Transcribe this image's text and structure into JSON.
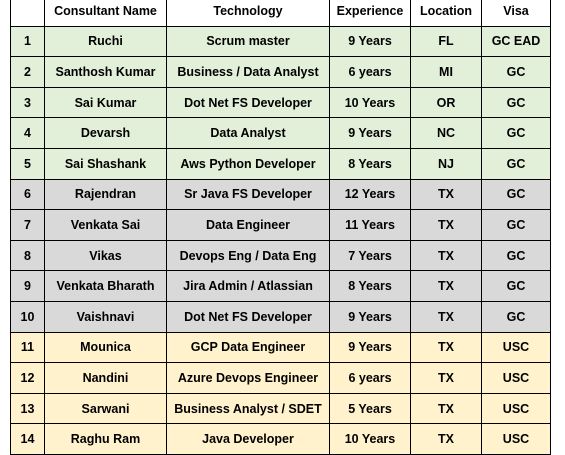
{
  "table": {
    "headers": [
      "",
      "Consultant Name",
      "Technology",
      "Experience",
      "Location",
      "Visa"
    ],
    "rows": [
      {
        "num": "1",
        "name": "Ruchi",
        "tech": "Scrum master",
        "exp": "9 Years",
        "loc": "FL",
        "visa": "GC EAD",
        "group": "green"
      },
      {
        "num": "2",
        "name": "Santhosh Kumar",
        "tech": "Business / Data Analyst",
        "exp": "6 years",
        "loc": "MI",
        "visa": "GC",
        "group": "green"
      },
      {
        "num": "3",
        "name": "Sai Kumar",
        "tech": "Dot Net FS Developer",
        "exp": "10 Years",
        "loc": "OR",
        "visa": "GC",
        "group": "green"
      },
      {
        "num": "4",
        "name": "Devarsh",
        "tech": "Data Analyst",
        "exp": "9 Years",
        "loc": "NC",
        "visa": "GC",
        "group": "green"
      },
      {
        "num": "5",
        "name": "Sai Shashank",
        "tech": "Aws Python Developer",
        "exp": "8 Years",
        "loc": "NJ",
        "visa": "GC",
        "group": "green"
      },
      {
        "num": "6",
        "name": "Rajendran",
        "tech": "Sr Java FS Developer",
        "exp": "12 Years",
        "loc": "TX",
        "visa": "GC",
        "group": "gray"
      },
      {
        "num": "7",
        "name": "Venkata Sai",
        "tech": "Data Engineer",
        "exp": "11 Years",
        "loc": "TX",
        "visa": "GC",
        "group": "gray"
      },
      {
        "num": "8",
        "name": "Vikas",
        "tech": "Devops Eng / Data Eng",
        "exp": "7 Years",
        "loc": "TX",
        "visa": "GC",
        "group": "gray"
      },
      {
        "num": "9",
        "name": "Venkata Bharath",
        "tech": "Jira Admin / Atlassian",
        "exp": "8 Years",
        "loc": "TX",
        "visa": "GC",
        "group": "gray"
      },
      {
        "num": "10",
        "name": "Vaishnavi",
        "tech": "Dot Net FS Developer",
        "exp": "9 Years",
        "loc": "TX",
        "visa": "GC",
        "group": "gray"
      },
      {
        "num": "11",
        "name": "Mounica",
        "tech": "GCP Data Engineer",
        "exp": "9 Years",
        "loc": "TX",
        "visa": "USC",
        "group": "yellow"
      },
      {
        "num": "12",
        "name": "Nandini",
        "tech": "Azure Devops Engineer",
        "exp": "6 years",
        "loc": "TX",
        "visa": "USC",
        "group": "yellow"
      },
      {
        "num": "13",
        "name": "Sarwani",
        "tech": "Business Analyst / SDET",
        "exp": "5 Years",
        "loc": "TX",
        "visa": "USC",
        "group": "yellow"
      },
      {
        "num": "14",
        "name": "Raghu Ram",
        "tech": "Java Developer",
        "exp": "10 Years",
        "loc": "TX",
        "visa": "USC",
        "group": "yellow"
      }
    ]
  },
  "colors": {
    "green": "#e2efd9",
    "gray": "#d9d9d9",
    "yellow": "#fff2cc",
    "border": "#000000"
  }
}
